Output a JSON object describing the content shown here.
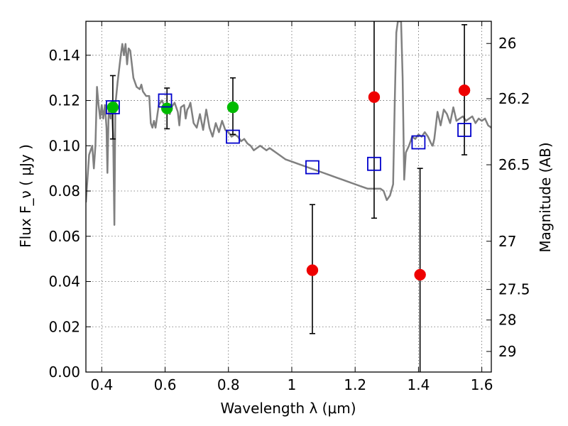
{
  "chart_data": {
    "type": "scatter",
    "xlabel": "Wavelength  λ (μm)",
    "ylabel": "Flux  F_ν  ( μJy )",
    "y2label": "Magnitude (AB)",
    "xlim": [
      0.35,
      1.63
    ],
    "ylim": [
      0.0,
      0.155
    ],
    "grid": true,
    "x_ticks": [
      0.4,
      0.6,
      0.8,
      1.0,
      1.2,
      1.4,
      1.6
    ],
    "x_tick_labels": [
      "0.4",
      "0.6",
      "0.8",
      "1",
      "1.2",
      "1.4",
      "1.6"
    ],
    "y_ticks": [
      0.0,
      0.02,
      0.04,
      0.06,
      0.08,
      0.1,
      0.12,
      0.14
    ],
    "y_tick_labels": [
      "0.00",
      "0.02",
      "0.04",
      "0.06",
      "0.08",
      "0.10",
      "0.12",
      "0.14"
    ],
    "y2_ticks": [
      {
        "label": "26",
        "flux": 0.1452
      },
      {
        "label": "26.2",
        "flux": 0.1208
      },
      {
        "label": "26.5",
        "flux": 0.0916
      },
      {
        "label": "27",
        "flux": 0.0578
      },
      {
        "label": "27.5",
        "flux": 0.0365
      },
      {
        "label": "28",
        "flux": 0.023
      },
      {
        "label": "29",
        "flux": 0.0091
      }
    ],
    "colors": {
      "model": "#808080",
      "green": "#00bb00",
      "red": "#ee0000",
      "square": "#0000cc",
      "errorbar": "#000000"
    },
    "series": [
      {
        "marker": "circle-green",
        "points": [
          {
            "x": 0.435,
            "y": 0.117
          },
          {
            "x": 0.606,
            "y": 0.1165
          },
          {
            "x": 0.814,
            "y": 0.117
          }
        ]
      },
      {
        "marker": "circle-red",
        "points": [
          {
            "x": 1.065,
            "y": 0.045
          },
          {
            "x": 1.26,
            "y": 0.1215
          },
          {
            "x": 1.405,
            "y": 0.043
          },
          {
            "x": 1.545,
            "y": 0.1245
          }
        ]
      },
      {
        "marker": "square-open-blue",
        "points": [
          {
            "x": 0.435,
            "y": 0.117
          },
          {
            "x": 0.6,
            "y": 0.12
          },
          {
            "x": 0.814,
            "y": 0.104
          },
          {
            "x": 1.065,
            "y": 0.0905
          },
          {
            "x": 1.26,
            "y": 0.092
          },
          {
            "x": 1.4,
            "y": 0.1015
          },
          {
            "x": 1.545,
            "y": 0.107
          }
        ]
      }
    ],
    "error_bars": [
      {
        "x": 0.435,
        "low": 0.103,
        "high": 0.131
      },
      {
        "x": 0.606,
        "low": 0.1075,
        "high": 0.1255
      },
      {
        "x": 0.814,
        "low": 0.105,
        "high": 0.13
      },
      {
        "x": 1.065,
        "low": 0.017,
        "high": 0.074
      },
      {
        "x": 1.26,
        "low": 0.068,
        "high": 0.155
      },
      {
        "x": 1.405,
        "low": 0.0,
        "high": 0.09
      },
      {
        "x": 1.545,
        "low": 0.096,
        "high": 0.1535
      }
    ],
    "model_spectrum": [
      [
        0.35,
        0.075
      ],
      [
        0.36,
        0.096
      ],
      [
        0.37,
        0.1
      ],
      [
        0.375,
        0.09
      ],
      [
        0.38,
        0.1
      ],
      [
        0.385,
        0.126
      ],
      [
        0.39,
        0.118
      ],
      [
        0.395,
        0.112
      ],
      [
        0.4,
        0.118
      ],
      [
        0.405,
        0.112
      ],
      [
        0.41,
        0.118
      ],
      [
        0.415,
        0.108
      ],
      [
        0.418,
        0.088
      ],
      [
        0.422,
        0.116
      ],
      [
        0.428,
        0.112
      ],
      [
        0.432,
        0.116
      ],
      [
        0.436,
        0.104
      ],
      [
        0.44,
        0.065
      ],
      [
        0.443,
        0.118
      ],
      [
        0.45,
        0.128
      ],
      [
        0.46,
        0.14
      ],
      [
        0.465,
        0.145
      ],
      [
        0.47,
        0.14
      ],
      [
        0.475,
        0.145
      ],
      [
        0.48,
        0.136
      ],
      [
        0.485,
        0.143
      ],
      [
        0.49,
        0.142
      ],
      [
        0.5,
        0.13
      ],
      [
        0.51,
        0.126
      ],
      [
        0.52,
        0.125
      ],
      [
        0.525,
        0.127
      ],
      [
        0.53,
        0.124
      ],
      [
        0.54,
        0.122
      ],
      [
        0.55,
        0.122
      ],
      [
        0.555,
        0.11
      ],
      [
        0.56,
        0.108
      ],
      [
        0.565,
        0.111
      ],
      [
        0.57,
        0.108
      ],
      [
        0.58,
        0.118
      ],
      [
        0.59,
        0.12
      ],
      [
        0.6,
        0.117
      ],
      [
        0.61,
        0.118
      ],
      [
        0.615,
        0.114
      ],
      [
        0.62,
        0.117
      ],
      [
        0.63,
        0.119
      ],
      [
        0.64,
        0.115
      ],
      [
        0.645,
        0.109
      ],
      [
        0.65,
        0.117
      ],
      [
        0.66,
        0.118
      ],
      [
        0.665,
        0.112
      ],
      [
        0.67,
        0.116
      ],
      [
        0.675,
        0.117
      ],
      [
        0.68,
        0.119
      ],
      [
        0.69,
        0.11
      ],
      [
        0.7,
        0.108
      ],
      [
        0.71,
        0.114
      ],
      [
        0.72,
        0.107
      ],
      [
        0.73,
        0.116
      ],
      [
        0.74,
        0.108
      ],
      [
        0.75,
        0.104
      ],
      [
        0.76,
        0.11
      ],
      [
        0.77,
        0.106
      ],
      [
        0.78,
        0.111
      ],
      [
        0.79,
        0.107
      ],
      [
        0.8,
        0.106
      ],
      [
        0.81,
        0.104
      ],
      [
        0.82,
        0.105
      ],
      [
        0.83,
        0.104
      ],
      [
        0.84,
        0.102
      ],
      [
        0.85,
        0.103
      ],
      [
        0.86,
        0.101
      ],
      [
        0.87,
        0.1
      ],
      [
        0.88,
        0.098
      ],
      [
        0.89,
        0.099
      ],
      [
        0.9,
        0.1
      ],
      [
        0.91,
        0.099
      ],
      [
        0.92,
        0.098
      ],
      [
        0.93,
        0.099
      ],
      [
        0.94,
        0.098
      ],
      [
        0.95,
        0.097
      ],
      [
        0.96,
        0.096
      ],
      [
        0.98,
        0.094
      ],
      [
        1.0,
        0.093
      ],
      [
        1.02,
        0.092
      ],
      [
        1.04,
        0.091
      ],
      [
        1.06,
        0.09
      ],
      [
        1.08,
        0.089
      ],
      [
        1.1,
        0.088
      ],
      [
        1.12,
        0.087
      ],
      [
        1.14,
        0.086
      ],
      [
        1.16,
        0.085
      ],
      [
        1.18,
        0.084
      ],
      [
        1.2,
        0.083
      ],
      [
        1.22,
        0.082
      ],
      [
        1.24,
        0.081
      ],
      [
        1.26,
        0.081
      ],
      [
        1.28,
        0.081
      ],
      [
        1.29,
        0.08
      ],
      [
        1.3,
        0.076
      ],
      [
        1.31,
        0.078
      ],
      [
        1.32,
        0.083
      ],
      [
        1.325,
        0.118
      ],
      [
        1.33,
        0.15
      ],
      [
        1.335,
        0.155
      ],
      [
        1.345,
        0.155
      ],
      [
        1.35,
        0.13
      ],
      [
        1.355,
        0.085
      ],
      [
        1.36,
        0.097
      ],
      [
        1.37,
        0.1
      ],
      [
        1.38,
        0.104
      ],
      [
        1.39,
        0.103
      ],
      [
        1.4,
        0.105
      ],
      [
        1.41,
        0.104
      ],
      [
        1.42,
        0.106
      ],
      [
        1.43,
        0.104
      ],
      [
        1.44,
        0.101
      ],
      [
        1.445,
        0.1
      ],
      [
        1.45,
        0.103
      ],
      [
        1.46,
        0.115
      ],
      [
        1.47,
        0.109
      ],
      [
        1.48,
        0.116
      ],
      [
        1.49,
        0.114
      ],
      [
        1.5,
        0.11
      ],
      [
        1.51,
        0.117
      ],
      [
        1.52,
        0.111
      ],
      [
        1.53,
        0.112
      ],
      [
        1.54,
        0.113
      ],
      [
        1.55,
        0.111
      ],
      [
        1.56,
        0.112
      ],
      [
        1.57,
        0.113
      ],
      [
        1.58,
        0.11
      ],
      [
        1.59,
        0.112
      ],
      [
        1.6,
        0.111
      ],
      [
        1.61,
        0.112
      ],
      [
        1.62,
        0.109
      ],
      [
        1.63,
        0.108
      ]
    ]
  }
}
